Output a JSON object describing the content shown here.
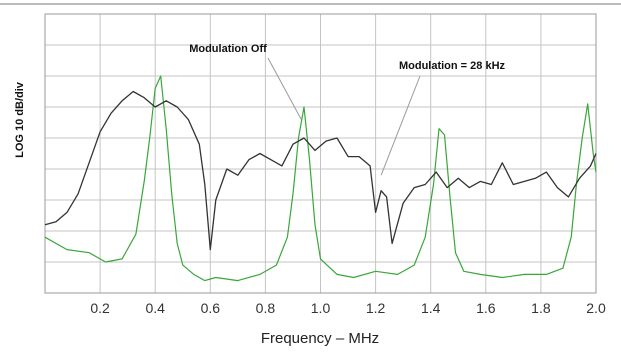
{
  "chart_data": {
    "type": "line",
    "title": "",
    "xlabel": "Frequency – MHz",
    "ylabel": "LOG 10 dB/div",
    "xlim": [
      0.0,
      2.0
    ],
    "ylim": [
      0,
      9
    ],
    "x_ticks": [
      "0.2",
      "0.4",
      "0.6",
      "0.8",
      "1.0",
      "1.2",
      "1.4",
      "1.6",
      "1.8",
      "2.0"
    ],
    "grid": true,
    "annotations": [
      {
        "text": "Modulation Off",
        "points_to": {
          "x": 0.93,
          "y": 5.6
        }
      },
      {
        "text": "Modulation = 28 kHz",
        "points_to": {
          "x": 1.22,
          "y": 3.8
        }
      }
    ],
    "series": [
      {
        "color": "#3aa63a",
        "x": [
          0.0,
          0.08,
          0.16,
          0.22,
          0.28,
          0.33,
          0.36,
          0.38,
          0.4,
          0.42,
          0.44,
          0.46,
          0.48,
          0.5,
          0.54,
          0.58,
          0.62,
          0.7,
          0.78,
          0.84,
          0.88,
          0.9,
          0.92,
          0.94,
          0.96,
          0.98,
          1.0,
          1.06,
          1.12,
          1.2,
          1.28,
          1.34,
          1.38,
          1.41,
          1.43,
          1.45,
          1.47,
          1.49,
          1.52,
          1.58,
          1.66,
          1.74,
          1.82,
          1.88,
          1.91,
          1.93,
          1.95,
          1.97,
          1.99,
          2.0
        ],
        "values": [
          1.8,
          1.4,
          1.3,
          1.0,
          1.1,
          1.9,
          3.6,
          5.0,
          6.6,
          7.0,
          5.3,
          3.2,
          1.6,
          0.9,
          0.6,
          0.4,
          0.5,
          0.4,
          0.6,
          0.9,
          1.8,
          3.2,
          5.0,
          6.0,
          4.3,
          2.2,
          1.1,
          0.6,
          0.5,
          0.7,
          0.6,
          0.9,
          1.8,
          3.5,
          5.3,
          5.1,
          3.1,
          1.3,
          0.7,
          0.6,
          0.5,
          0.6,
          0.6,
          0.8,
          1.8,
          3.6,
          5.0,
          6.1,
          4.5,
          3.9
        ]
      },
      {
        "color": "#333333",
        "x": [
          0.0,
          0.04,
          0.08,
          0.12,
          0.16,
          0.2,
          0.24,
          0.28,
          0.32,
          0.36,
          0.4,
          0.44,
          0.48,
          0.52,
          0.56,
          0.58,
          0.6,
          0.62,
          0.66,
          0.7,
          0.74,
          0.78,
          0.82,
          0.86,
          0.9,
          0.94,
          0.98,
          1.02,
          1.06,
          1.1,
          1.14,
          1.18,
          1.2,
          1.22,
          1.24,
          1.26,
          1.3,
          1.34,
          1.38,
          1.42,
          1.46,
          1.5,
          1.54,
          1.58,
          1.62,
          1.66,
          1.7,
          1.74,
          1.78,
          1.82,
          1.86,
          1.9,
          1.94,
          1.98,
          2.0
        ],
        "values": [
          2.2,
          2.3,
          2.6,
          3.2,
          4.2,
          5.2,
          5.8,
          6.2,
          6.5,
          6.3,
          6.0,
          6.2,
          6.0,
          5.6,
          4.8,
          3.5,
          1.4,
          3.0,
          4.0,
          3.8,
          4.3,
          4.5,
          4.3,
          4.1,
          4.8,
          5.0,
          4.6,
          4.9,
          5.0,
          4.4,
          4.4,
          4.1,
          2.6,
          3.3,
          3.1,
          1.6,
          2.9,
          3.4,
          3.5,
          3.9,
          3.4,
          3.7,
          3.4,
          3.6,
          3.5,
          4.2,
          3.5,
          3.6,
          3.7,
          3.9,
          3.4,
          3.1,
          3.7,
          4.1,
          4.5
        ]
      }
    ]
  }
}
